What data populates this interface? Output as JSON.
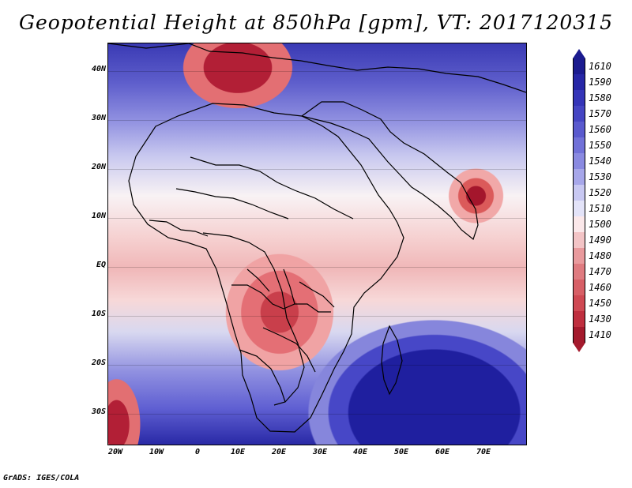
{
  "title": "Geopotential Height at 850hPa [gpm], VT: 2017120315",
  "credit": "GrADS: IGES/COLA",
  "map": {
    "region": "Africa and surrounding Atlantic / Indian Ocean",
    "lat_labels": [
      "40N",
      "30N",
      "20N",
      "10N",
      "EQ",
      "10S",
      "20S",
      "30S"
    ],
    "lon_labels": [
      "20W",
      "10W",
      "0",
      "10E",
      "20E",
      "30E",
      "40E",
      "50E",
      "60E",
      "70E"
    ]
  },
  "legend": {
    "values": [
      "1610",
      "1590",
      "1580",
      "1570",
      "1560",
      "1550",
      "1540",
      "1530",
      "1520",
      "1510",
      "1500",
      "1490",
      "1480",
      "1470",
      "1460",
      "1450",
      "1430",
      "1410"
    ],
    "colors": [
      "#1b1b8f",
      "#2626a6",
      "#3535b8",
      "#4545c3",
      "#5a5ace",
      "#7171d8",
      "#8a8ae1",
      "#a7a7ea",
      "#c8c8f2",
      "#e3e3f8",
      "#fbe8ea",
      "#f3c4c6",
      "#e99a9d",
      "#df7b80",
      "#d75f66",
      "#cf4953",
      "#bf2f3f",
      "#a41a2d"
    ]
  }
}
